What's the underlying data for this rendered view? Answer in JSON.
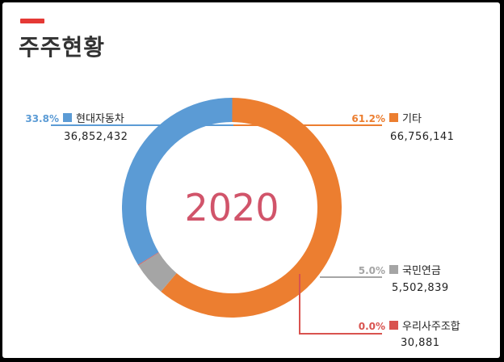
{
  "header": {
    "title": "주주현황"
  },
  "chart_data": {
    "type": "pie",
    "donut": true,
    "center_label": "2020",
    "slices": [
      {
        "name": "기타",
        "percent_label": "61.2%",
        "value": 66756141,
        "value_label": "66,756,141",
        "color": "#ec7e30"
      },
      {
        "name": "국민연금",
        "percent_label": "5.0%",
        "value": 5502839,
        "value_label": "5,502,839",
        "color": "#a5a5a5"
      },
      {
        "name": "우리사주조합",
        "percent_label": "0.0%",
        "value": 30881,
        "value_label": "30,881",
        "color": "#d9534f"
      },
      {
        "name": "현대자동차",
        "percent_label": "33.8%",
        "value": 36852432,
        "value_label": "36,852,432",
        "color": "#5b9bd5"
      }
    ]
  }
}
